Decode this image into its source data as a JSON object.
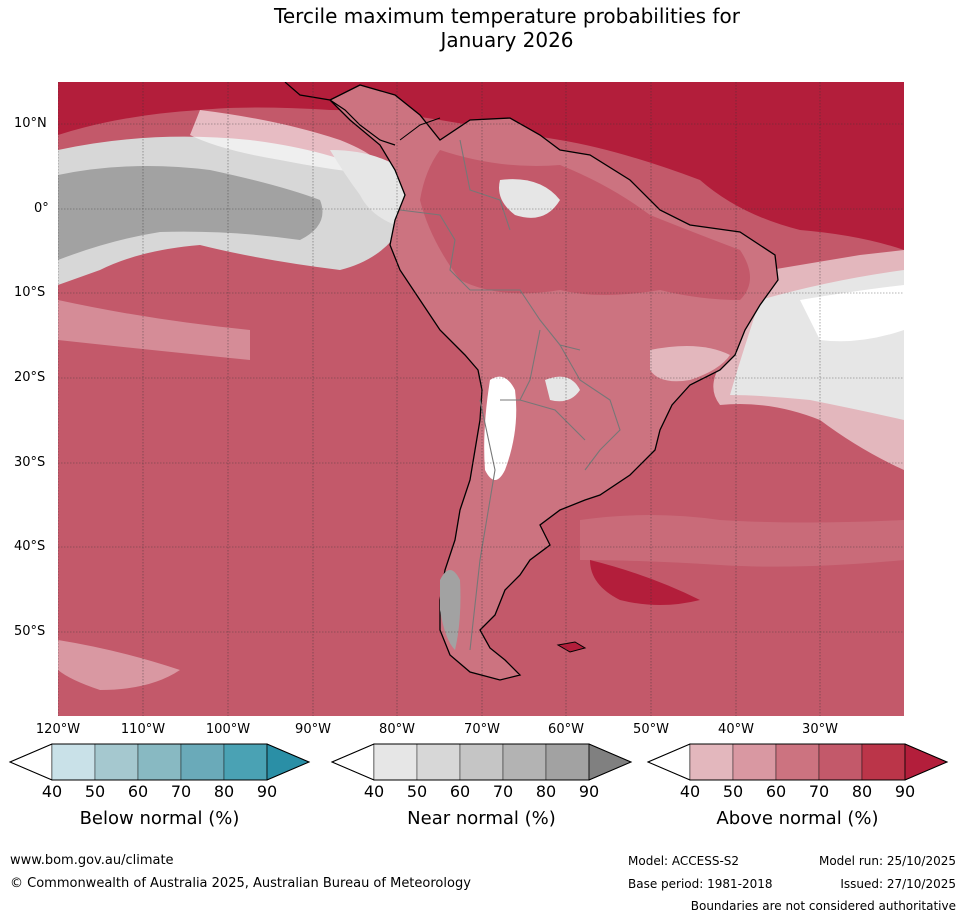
{
  "title": {
    "line1": "Tercile maximum temperature probabilities for",
    "line2": "January 2026"
  },
  "latitude_labels": [
    "10°N",
    "0°",
    "10°S",
    "20°S",
    "30°S",
    "40°S",
    "50°S"
  ],
  "longitude_labels": [
    "120°W",
    "110°W",
    "100°W",
    "90°W",
    "80°W",
    "70°W",
    "60°W",
    "50°W",
    "40°W",
    "30°W"
  ],
  "legend": {
    "below": {
      "title": "Below normal (%)",
      "ticks": [
        "40",
        "50",
        "60",
        "70",
        "80",
        "90"
      ],
      "colors": [
        "#ffffff",
        "#c9e1e8",
        "#a5c8cf",
        "#88b9c2",
        "#6aaab9",
        "#4aa2b4",
        "#2a8fa6"
      ]
    },
    "near": {
      "title": "Near normal (%)",
      "ticks": [
        "40",
        "50",
        "60",
        "70",
        "80",
        "90"
      ],
      "colors": [
        "#ffffff",
        "#e6e6e6",
        "#d7d7d7",
        "#c5c5c5",
        "#b3b3b3",
        "#a2a2a2",
        "#808080"
      ]
    },
    "above": {
      "title": "Above normal (%)",
      "ticks": [
        "40",
        "50",
        "60",
        "70",
        "80",
        "90"
      ],
      "colors": [
        "#ffffff",
        "#e3b7bd",
        "#d998a2",
        "#cc7380",
        "#c3596a",
        "#bb3549",
        "#b31e3b"
      ]
    }
  },
  "footer": {
    "website": "www.bom.gov.au/climate",
    "copyright": "© Commonwealth of Australia 2025, Australian Bureau of Meteorology",
    "model": "Model: ACCESS-S2",
    "base_period": "Base period: 1981-2018",
    "model_run": "Model run: 25/10/2025",
    "issued": "Issued: 27/10/2025",
    "disclaimer": "Boundaries are not considered authoritative"
  }
}
